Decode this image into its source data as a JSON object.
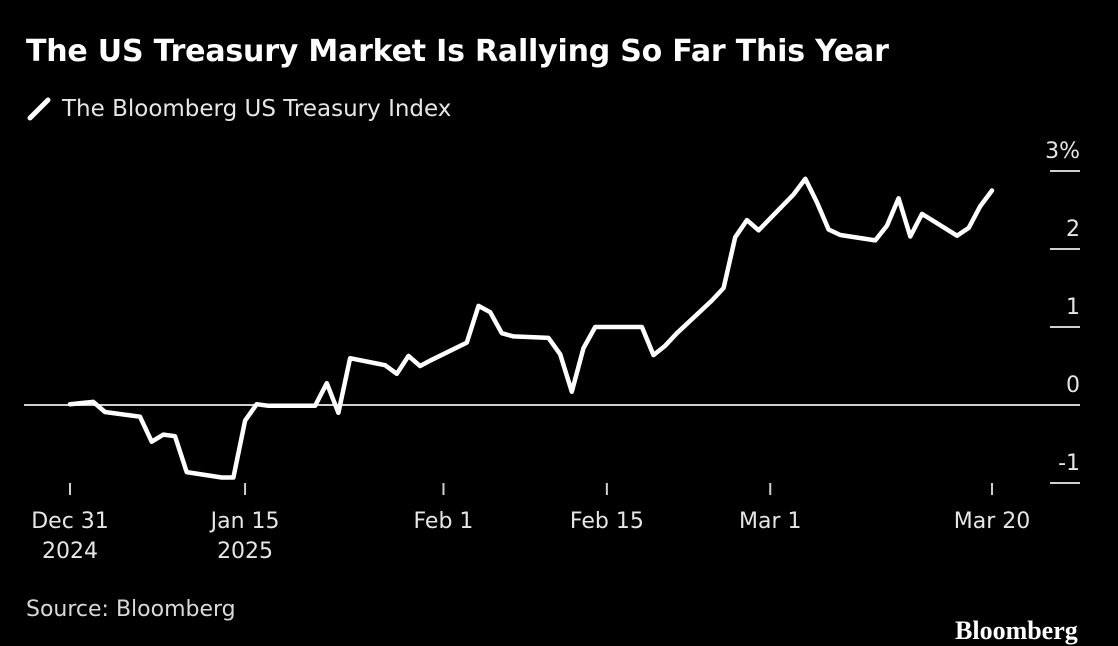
{
  "title": "The US Treasury Market Is Rallying So Far This Year",
  "legend_label": "The Bloomberg US Treasury Index",
  "source": "Source: Bloomberg",
  "logo": "Bloomberg",
  "colors": {
    "background": "#000000",
    "line": "#ffffff",
    "text": "#ffffff"
  },
  "chart_data": {
    "type": "line",
    "series": [
      {
        "name": "The Bloomberg US Treasury Index",
        "x": [
          "2024-12-31",
          "2025-01-02",
          "2025-01-03",
          "2025-01-06",
          "2025-01-07",
          "2025-01-08",
          "2025-01-09",
          "2025-01-10",
          "2025-01-13",
          "2025-01-14",
          "2025-01-15",
          "2025-01-16",
          "2025-01-17",
          "2025-01-21",
          "2025-01-22",
          "2025-01-23",
          "2025-01-24",
          "2025-01-27",
          "2025-01-28",
          "2025-01-29",
          "2025-01-30",
          "2025-01-31",
          "2025-02-03",
          "2025-02-04",
          "2025-02-05",
          "2025-02-06",
          "2025-02-07",
          "2025-02-10",
          "2025-02-11",
          "2025-02-12",
          "2025-02-13",
          "2025-02-14",
          "2025-02-18",
          "2025-02-19",
          "2025-02-20",
          "2025-02-21",
          "2025-02-24",
          "2025-02-25",
          "2025-02-26",
          "2025-02-27",
          "2025-02-28",
          "2025-03-03",
          "2025-03-04",
          "2025-03-05",
          "2025-03-06",
          "2025-03-07",
          "2025-03-10",
          "2025-03-11",
          "2025-03-12",
          "2025-03-13",
          "2025-03-14",
          "2025-03-17",
          "2025-03-18",
          "2025-03-19",
          "2025-03-20"
        ],
        "values": [
          0.01,
          0.04,
          -0.09,
          -0.15,
          -0.47,
          -0.38,
          -0.4,
          -0.86,
          -0.93,
          -0.93,
          -0.2,
          0.01,
          -0.01,
          -0.01,
          0.28,
          -0.1,
          0.6,
          0.51,
          0.4,
          0.63,
          0.5,
          0.58,
          0.8,
          1.27,
          1.19,
          0.92,
          0.88,
          0.86,
          0.65,
          0.17,
          0.73,
          1.0,
          1.0,
          0.64,
          0.76,
          0.92,
          1.34,
          1.5,
          2.15,
          2.37,
          2.24,
          2.7,
          2.9,
          2.6,
          2.25,
          2.18,
          2.11,
          2.3,
          2.65,
          2.16,
          2.45,
          2.17,
          2.27,
          2.55,
          2.75
        ]
      }
    ],
    "x_ticks": [
      {
        "date": "2024-12-31",
        "line1": "Dec 31",
        "line2": "2024"
      },
      {
        "date": "2025-01-15",
        "line1": "Jan 15",
        "line2": "2025"
      },
      {
        "date": "2025-02-01",
        "line1": "Feb 1",
        "line2": ""
      },
      {
        "date": "2025-02-15",
        "line1": "Feb 15",
        "line2": ""
      },
      {
        "date": "2025-03-01",
        "line1": "Mar 1",
        "line2": ""
      },
      {
        "date": "2025-03-20",
        "line1": "Mar 20",
        "line2": ""
      }
    ],
    "y_ticks": [
      {
        "value": 3,
        "label": "3%"
      },
      {
        "value": 2,
        "label": "2"
      },
      {
        "value": 1,
        "label": "1"
      },
      {
        "value": 0,
        "label": "0"
      },
      {
        "value": -1,
        "label": "-1"
      }
    ],
    "ylim": [
      -1,
      3
    ],
    "xlim": [
      "2024-12-31",
      "2025-03-20"
    ],
    "zero_line": true,
    "legend_position": "top-left",
    "y_axis_position": "right"
  }
}
